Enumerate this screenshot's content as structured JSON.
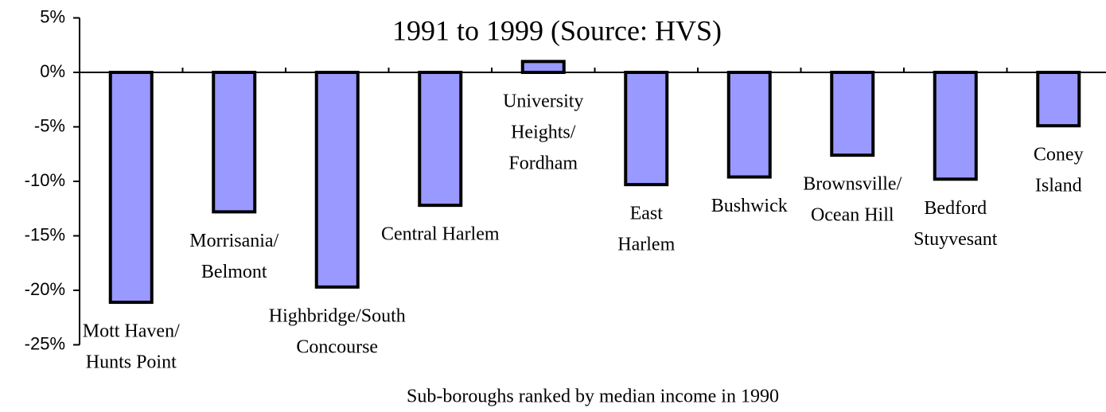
{
  "chart_data": {
    "type": "bar",
    "title": "1991 to 1999 (Source: HVS)",
    "x_label": "Sub-boroughs ranked by median income in 1990",
    "categories": [
      [
        "Mott Haven/",
        "Hunts Point"
      ],
      [
        "Morrisania/",
        "Belmont"
      ],
      [
        "Highbridge/South",
        "Concourse"
      ],
      [
        "Central Harlem"
      ],
      [
        "University",
        "Heights/",
        "Fordham"
      ],
      [
        "East",
        "Harlem"
      ],
      [
        "Bushwick"
      ],
      [
        "Brownsville/",
        "Ocean Hill"
      ],
      [
        "Bedford",
        "Stuyvesant"
      ],
      [
        "Coney",
        "Island"
      ]
    ],
    "values": [
      -21.1,
      -12.8,
      -19.7,
      -12.2,
      1.0,
      -10.3,
      -9.6,
      -7.6,
      -9.8,
      -4.9
    ],
    "color": "#9999ff",
    "ylim": [
      -25,
      5
    ],
    "yticks": [
      {
        "value": 5,
        "label": "5%"
      },
      {
        "value": 0,
        "label": "0%"
      },
      {
        "value": -5,
        "label": "-5%"
      },
      {
        "value": -10,
        "label": "-10%"
      },
      {
        "value": -15,
        "label": "-15%"
      },
      {
        "value": -20,
        "label": "-20%"
      },
      {
        "value": -25,
        "label": "-25%"
      }
    ],
    "grid": false
  }
}
